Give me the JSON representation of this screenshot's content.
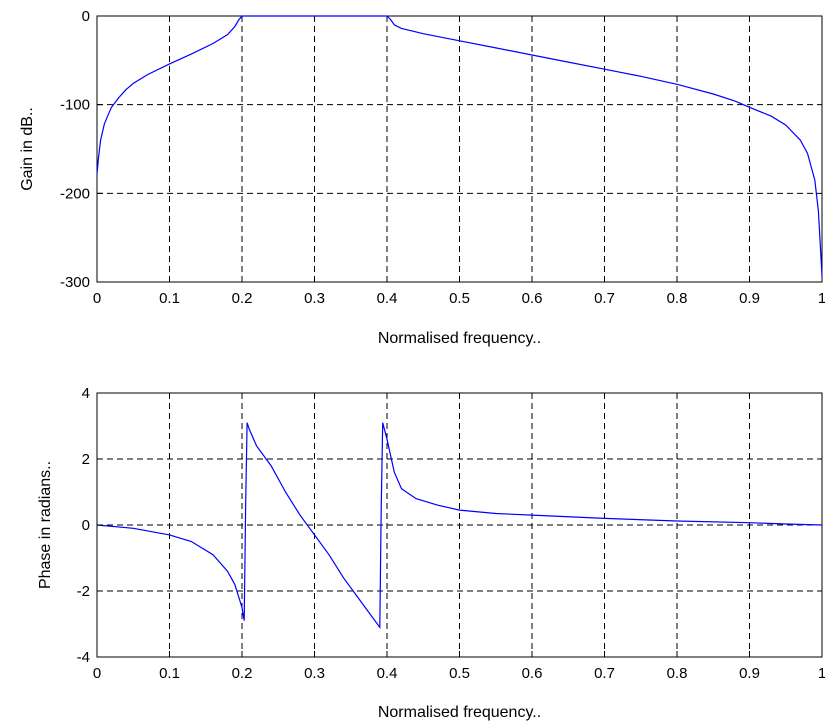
{
  "figure": {
    "colors": {
      "line": "#0000ff",
      "axes": "#000000",
      "background": "#ffffff"
    }
  },
  "chart_data": [
    {
      "type": "line",
      "xlabel": "Normalised frequency..",
      "ylabel": "Gain in dB..",
      "xlim": [
        0,
        1
      ],
      "ylim": [
        -300,
        0
      ],
      "xticks": [
        "0",
        "0.1",
        "0.2",
        "0.3",
        "0.4",
        "0.5",
        "0.6",
        "0.7",
        "0.8",
        "0.9",
        "1"
      ],
      "yticks": [
        "0",
        "-100",
        "-200",
        "-300"
      ],
      "grid": true,
      "series": [
        {
          "x": [
            0,
            0.002,
            0.005,
            0.01,
            0.015,
            0.02,
            0.03,
            0.04,
            0.05,
            0.07,
            0.1,
            0.13,
            0.16,
            0.18,
            0.19,
            0.195,
            0.2,
            0.25,
            0.3,
            0.35,
            0.4,
            0.405,
            0.41,
            0.42,
            0.45,
            0.5,
            0.55,
            0.6,
            0.65,
            0.7,
            0.75,
            0.8,
            0.85,
            0.88,
            0.9,
            0.93,
            0.95,
            0.97,
            0.98,
            0.99,
            0.995,
            1.0
          ],
          "y": [
            -178,
            -160,
            -140,
            -122,
            -112,
            -103,
            -92,
            -83,
            -76,
            -66,
            -54,
            -43,
            -31,
            -21,
            -12,
            -5,
            0,
            0,
            0,
            0,
            0,
            -4,
            -10,
            -14,
            -20,
            -28,
            -36,
            -44,
            -52,
            -60,
            -68,
            -77,
            -88,
            -96,
            -103,
            -113,
            -123,
            -140,
            -155,
            -185,
            -220,
            -293
          ]
        }
      ]
    },
    {
      "type": "line",
      "xlabel": "Normalised frequency..",
      "ylabel": "Phase in radians..",
      "xlim": [
        0,
        1
      ],
      "ylim": [
        -4,
        4
      ],
      "xticks": [
        "0",
        "0.1",
        "0.2",
        "0.3",
        "0.4",
        "0.5",
        "0.6",
        "0.7",
        "0.8",
        "0.9",
        "1"
      ],
      "yticks": [
        "4",
        "2",
        "0",
        "-2",
        "-4"
      ],
      "grid": true,
      "series": [
        {
          "x": [
            0,
            0.05,
            0.1,
            0.13,
            0.16,
            0.18,
            0.19,
            0.2,
            0.203,
            0.205,
            0.207,
            0.21,
            0.22,
            0.24,
            0.26,
            0.28,
            0.3,
            0.32,
            0.34,
            0.36,
            0.38,
            0.39,
            0.392,
            0.394,
            0.4,
            0.41,
            0.42,
            0.44,
            0.47,
            0.5,
            0.55,
            0.6,
            0.7,
            0.8,
            0.9,
            0.95,
            1.0
          ],
          "y": [
            0,
            -0.1,
            -0.3,
            -0.5,
            -0.9,
            -1.4,
            -1.8,
            -2.5,
            -2.9,
            0.5,
            3.1,
            2.9,
            2.4,
            1.8,
            1.0,
            0.3,
            -0.3,
            -0.9,
            -1.6,
            -2.2,
            -2.8,
            -3.1,
            0.5,
            3.1,
            2.6,
            1.6,
            1.1,
            0.8,
            0.6,
            0.45,
            0.35,
            0.3,
            0.2,
            0.12,
            0.07,
            0.03,
            0.0
          ]
        }
      ]
    }
  ]
}
